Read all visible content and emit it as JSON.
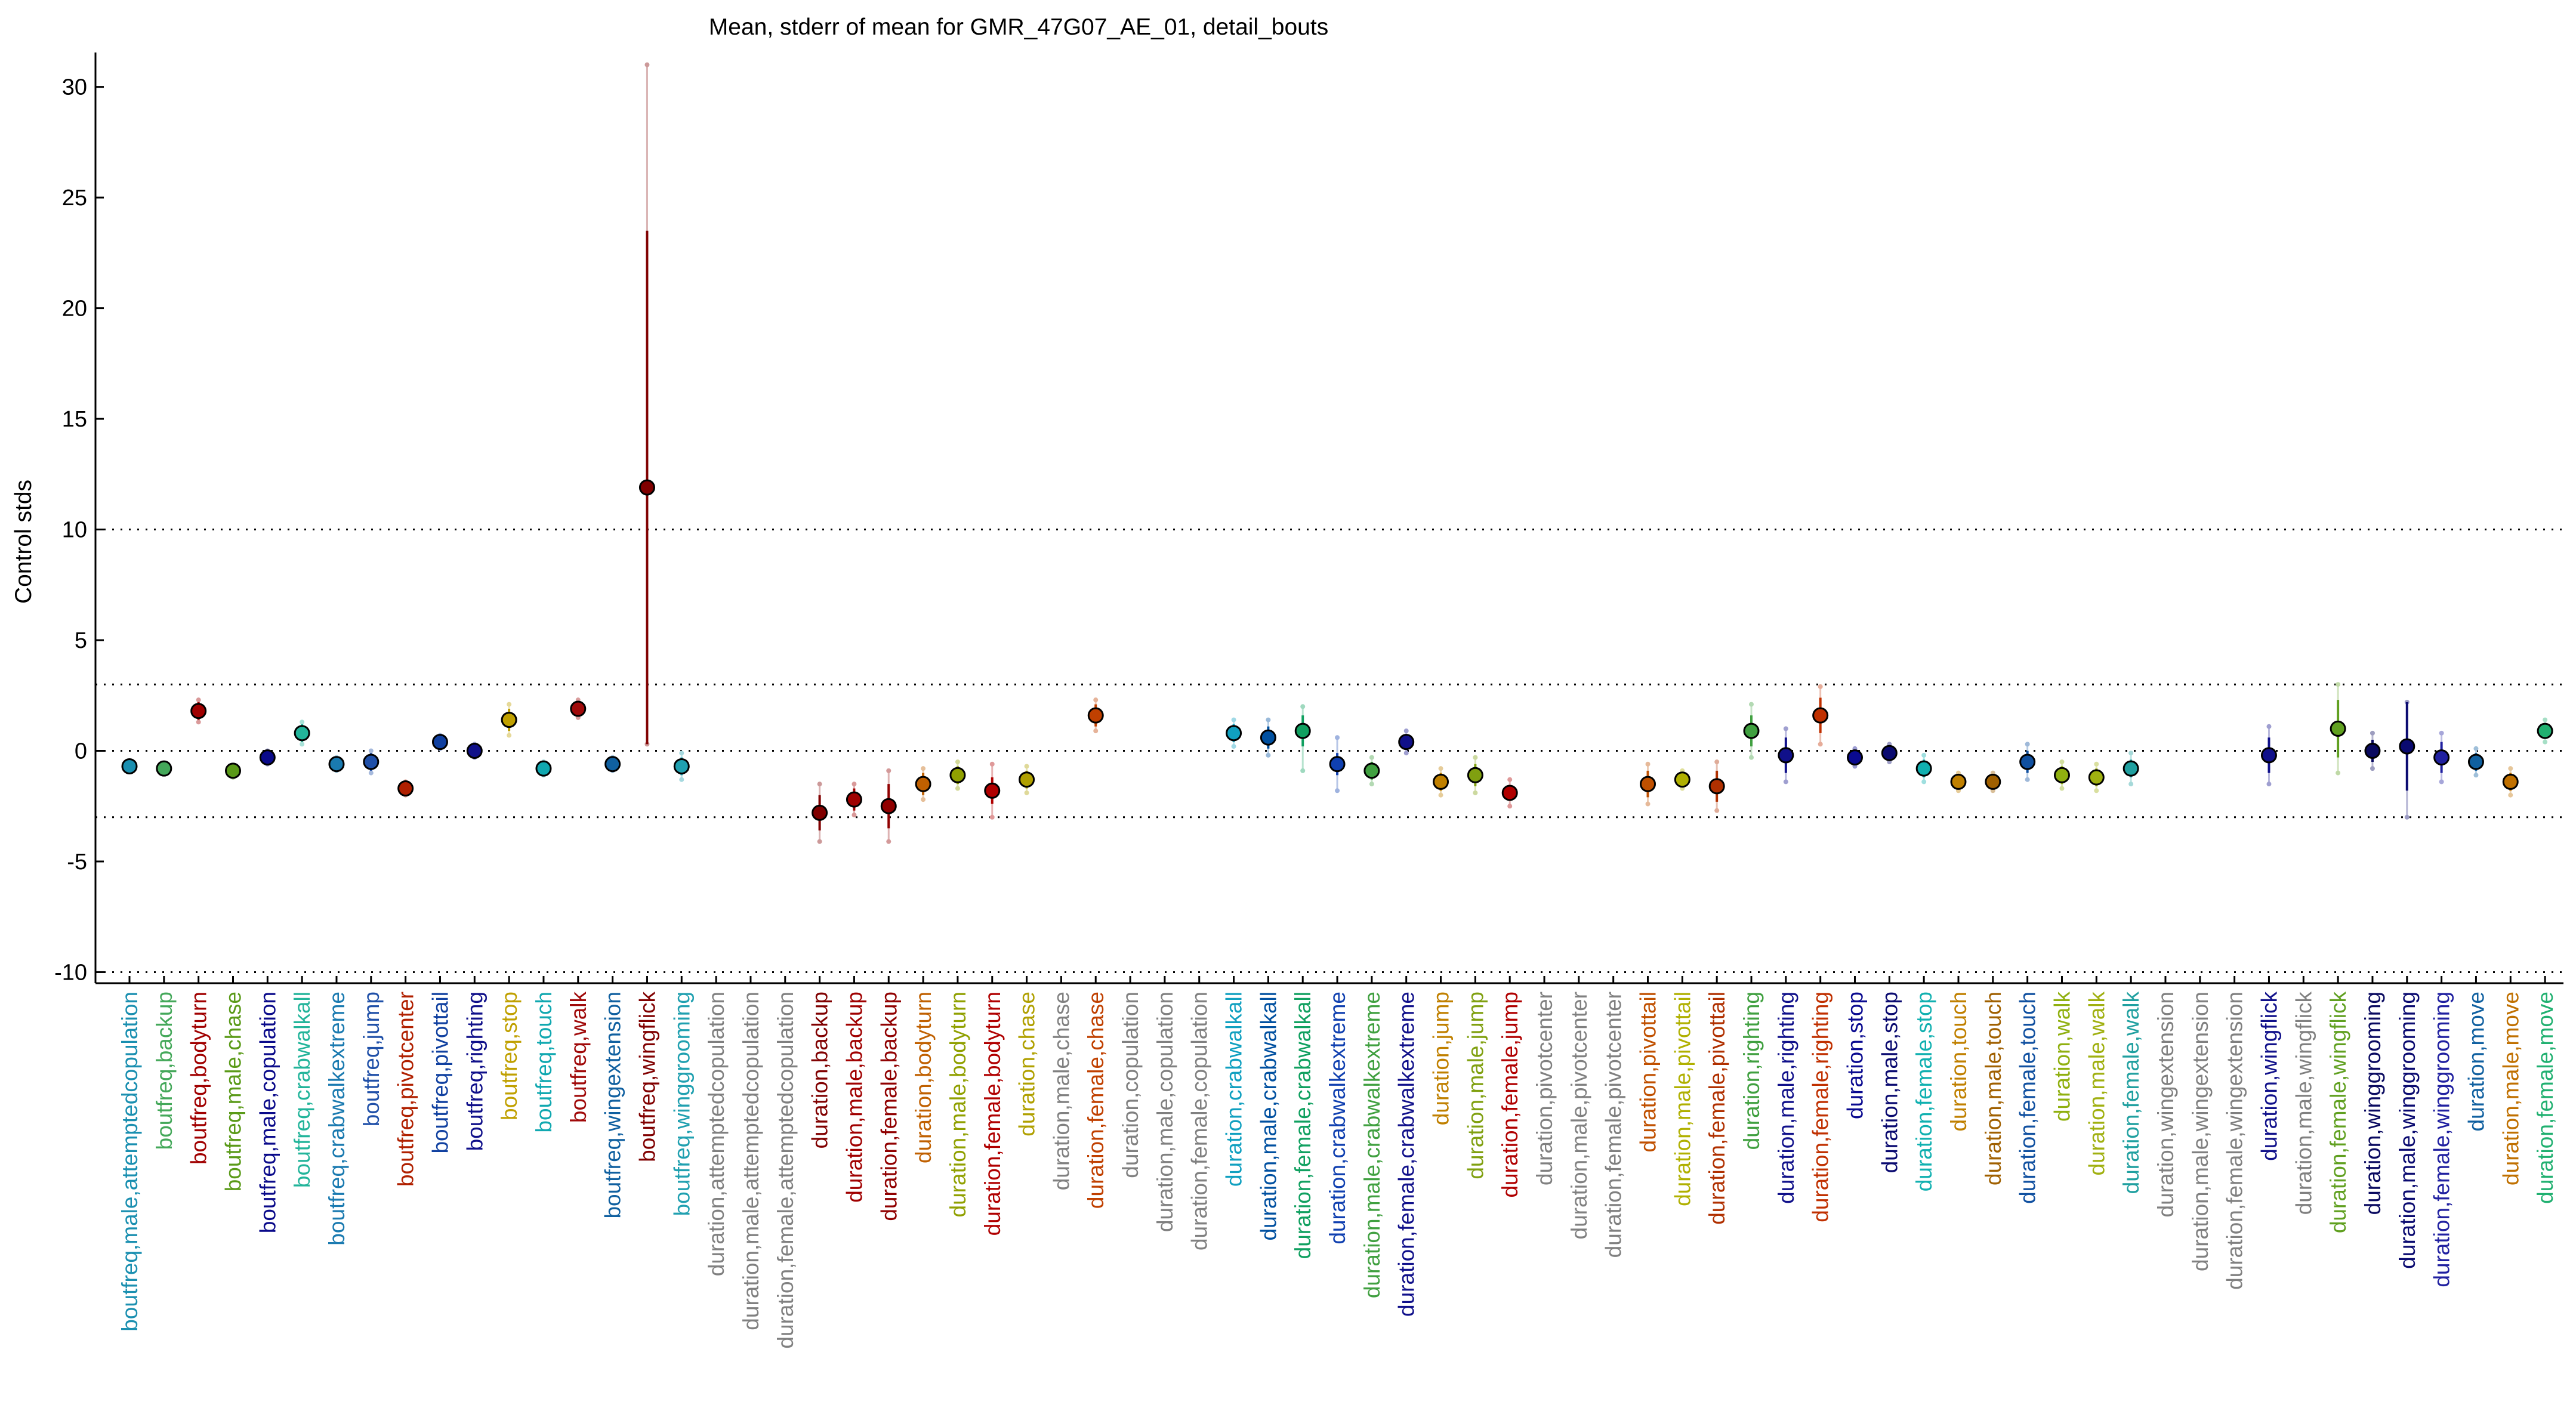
{
  "chart_data": {
    "type": "scatter",
    "title": "Mean, stderr of mean for GMR_47G07_AE_01, detail_bouts",
    "xlabel": "",
    "ylabel": "Control stds",
    "ylim": [
      -10.5,
      31.5
    ],
    "yticks": [
      -10,
      -5,
      0,
      5,
      10,
      15,
      20,
      25,
      30
    ],
    "reference_lines": [
      -10,
      -3,
      0,
      3,
      10
    ],
    "grid": false,
    "categories": [
      "boutfreq,male,attemptedcopulation",
      "boutfreq,backup",
      "boutfreq,bodyturn",
      "boutfreq,male,chase",
      "boutfreq,male,copulation",
      "boutfreq,crabwalkall",
      "boutfreq,crabwalkextreme",
      "boutfreq,jump",
      "boutfreq,pivotcenter",
      "boutfreq,pivottail",
      "boutfreq,righting",
      "boutfreq,stop",
      "boutfreq,touch",
      "boutfreq,walk",
      "boutfreq,wingextension",
      "boutfreq,wingflick",
      "boutfreq,winggrooming",
      "duration,attemptedcopulation",
      "duration,male,attemptedcopulation",
      "duration,female,attemptedcopulation",
      "duration,backup",
      "duration,male,backup",
      "duration,female,backup",
      "duration,bodyturn",
      "duration,male,bodyturn",
      "duration,female,bodyturn",
      "duration,chase",
      "duration,male,chase",
      "duration,female,chase",
      "duration,copulation",
      "duration,male,copulation",
      "duration,female,copulation",
      "duration,crabwalkall",
      "duration,male,crabwalkall",
      "duration,female,crabwalkall",
      "duration,crabwalkextreme",
      "duration,male,crabwalkextreme",
      "duration,female,crabwalkextreme",
      "duration,jump",
      "duration,male,jump",
      "duration,female,jump",
      "duration,pivotcenter",
      "duration,male,pivotcenter",
      "duration,female,pivotcenter",
      "duration,pivottail",
      "duration,male,pivottail",
      "duration,female,pivottail",
      "duration,righting",
      "duration,male,righting",
      "duration,female,righting",
      "duration,stop",
      "duration,male,stop",
      "duration,female,stop",
      "duration,touch",
      "duration,male,touch",
      "duration,female,touch",
      "duration,walk",
      "duration,male,walk",
      "duration,female,walk",
      "duration,wingextension",
      "duration,male,wingextension",
      "duration,female,wingextension",
      "duration,wingflick",
      "duration,male,wingflick",
      "duration,female,wingflick",
      "duration,winggrooming",
      "duration,male,winggrooming",
      "duration,female,winggrooming",
      "duration,move",
      "duration,male,move",
      "duration,female,move"
    ],
    "label_colors": [
      "#1a8fb0",
      "#44a85a",
      "#a00000",
      "#5a9a18",
      "#0a0a8a",
      "#22b49a",
      "#1a7ab0",
      "#2050a8",
      "#b02000",
      "#1040a0",
      "#10108a",
      "#c0a000",
      "#10a8b0",
      "#a00a0a",
      "#1060a0",
      "#800000",
      "#20a0b0",
      "#808080",
      "#808080",
      "#808080",
      "#800000",
      "#a00000",
      "#900000",
      "#c06000",
      "#90a000",
      "#b00000",
      "#b0a000",
      "#808080",
      "#c04000",
      "#808080",
      "#808080",
      "#808080",
      "#10a0c0",
      "#0050a0",
      "#10a060",
      "#1040b0",
      "#40a040",
      "#10108a",
      "#c08000",
      "#80a010",
      "#b00000",
      "#808080",
      "#808080",
      "#808080",
      "#c05000",
      "#b0b000",
      "#b03000",
      "#40a040",
      "#10108a",
      "#c03000",
      "#0a0a90",
      "#0a0a70",
      "#10b0b0",
      "#c08000",
      "#a06000",
      "#1050a0",
      "#90b010",
      "#a0b010",
      "#20a0a0",
      "#808080",
      "#808080",
      "#808080",
      "#10108a",
      "#808080",
      "#60a020",
      "#0a0a60",
      "#0a0a70",
      "#2020a0",
      "#1060a0",
      "#c07000",
      "#20b070"
    ],
    "marker_colors": [
      "#1a8fb0",
      "#44a85a",
      "#a00000",
      "#5a9a18",
      "#0a0a8a",
      "#22b49a",
      "#1a7ab0",
      "#2050a8",
      "#b02000",
      "#1040a0",
      "#10108a",
      "#c0a000",
      "#10a8b0",
      "#a00a0a",
      "#1060a0",
      "#800000",
      "#20a0b0",
      null,
      null,
      null,
      "#800000",
      "#a00000",
      "#900000",
      "#c06000",
      "#90a000",
      "#b00000",
      "#b0a000",
      null,
      "#c04000",
      null,
      null,
      null,
      "#10a0c0",
      "#0050a0",
      "#10a060",
      "#1040b0",
      "#40a040",
      "#10108a",
      "#c08000",
      "#80a010",
      "#b00000",
      null,
      null,
      null,
      "#c05000",
      "#b0b000",
      "#b03000",
      "#40a040",
      "#10108a",
      "#c03000",
      "#0a0a90",
      "#0a0a70",
      "#10b0b0",
      "#c08000",
      "#a06000",
      "#1050a0",
      "#90b010",
      "#a0b010",
      "#20a0a0",
      null,
      null,
      null,
      "#10108a",
      null,
      "#60a020",
      "#0a0a60",
      "#0a0a70",
      "#2020a0",
      "#1060a0",
      "#c07000",
      "#20b070"
    ],
    "means": [
      -0.7,
      -0.8,
      1.8,
      -0.9,
      -0.3,
      0.8,
      -0.6,
      -0.5,
      -1.7,
      0.4,
      0.0,
      1.4,
      -0.8,
      1.9,
      -0.6,
      11.9,
      -0.7,
      null,
      null,
      null,
      -2.8,
      -2.2,
      -2.5,
      -1.5,
      -1.1,
      -1.8,
      -1.3,
      null,
      1.6,
      null,
      null,
      null,
      0.8,
      0.6,
      0.9,
      -0.6,
      -0.9,
      0.4,
      -1.4,
      -1.1,
      -1.9,
      null,
      null,
      null,
      -1.5,
      -1.3,
      -1.6,
      0.9,
      -0.2,
      1.6,
      -0.3,
      -0.1,
      -0.8,
      -1.4,
      -1.4,
      -0.5,
      -1.1,
      -1.2,
      -0.8,
      null,
      null,
      null,
      -0.2,
      null,
      1.0,
      0.0,
      0.2,
      -0.3,
      -0.5,
      -1.4,
      0.9
    ],
    "stderr": [
      0.2,
      0.2,
      0.4,
      0.2,
      0.2,
      0.4,
      0.2,
      0.4,
      0.2,
      0.2,
      0.2,
      0.5,
      0.2,
      0.3,
      0.2,
      11.6,
      0.4,
      null,
      null,
      null,
      0.8,
      0.5,
      1.0,
      0.5,
      0.4,
      0.6,
      0.4,
      null,
      0.5,
      null,
      null,
      null,
      0.4,
      0.5,
      0.7,
      0.5,
      0.4,
      0.3,
      0.4,
      0.5,
      0.3,
      null,
      null,
      null,
      0.6,
      0.3,
      0.7,
      0.7,
      0.8,
      0.8,
      0.3,
      0.3,
      0.4,
      0.3,
      0.3,
      0.5,
      0.4,
      0.4,
      0.4,
      null,
      null,
      null,
      0.8,
      null,
      1.3,
      0.5,
      2.0,
      0.7,
      0.4,
      0.4,
      0.3
    ],
    "whisker_range": [
      [
        -0.9,
        -0.5
      ],
      [
        -1.0,
        -0.6
      ],
      [
        1.3,
        2.3
      ],
      [
        -1.2,
        -0.7
      ],
      [
        -0.6,
        0.0
      ],
      [
        0.3,
        1.3
      ],
      [
        -0.9,
        -0.3
      ],
      [
        -1.0,
        0.0
      ],
      [
        -2.0,
        -1.4
      ],
      [
        0.1,
        0.7
      ],
      [
        -0.3,
        0.3
      ],
      [
        0.7,
        2.1
      ],
      [
        -1.1,
        -0.5
      ],
      [
        1.5,
        2.3
      ],
      [
        -0.9,
        -0.3
      ],
      [
        0.3,
        31.0
      ],
      [
        -1.3,
        -0.1
      ],
      null,
      null,
      null,
      [
        -4.1,
        -1.5
      ],
      [
        -2.9,
        -1.5
      ],
      [
        -4.1,
        -0.9
      ],
      [
        -2.2,
        -0.8
      ],
      [
        -1.7,
        -0.5
      ],
      [
        -3.0,
        -0.6
      ],
      [
        -1.9,
        -0.7
      ],
      null,
      [
        0.9,
        2.3
      ],
      null,
      null,
      null,
      [
        0.2,
        1.4
      ],
      [
        -0.2,
        1.4
      ],
      [
        -0.9,
        2.0
      ],
      [
        -1.8,
        0.6
      ],
      [
        -1.5,
        -0.3
      ],
      [
        -0.1,
        0.9
      ],
      [
        -2.0,
        -0.8
      ],
      [
        -1.9,
        -0.3
      ],
      [
        -2.5,
        -1.3
      ],
      null,
      null,
      null,
      [
        -2.4,
        -0.6
      ],
      [
        -1.7,
        -0.9
      ],
      [
        -2.7,
        -0.5
      ],
      [
        -0.3,
        2.1
      ],
      [
        -1.4,
        1.0
      ],
      [
        0.3,
        2.9
      ],
      [
        -0.7,
        0.1
      ],
      [
        -0.5,
        0.3
      ],
      [
        -1.4,
        -0.2
      ],
      [
        -1.8,
        -1.0
      ],
      [
        -1.8,
        -1.0
      ],
      [
        -1.3,
        0.3
      ],
      [
        -1.7,
        -0.5
      ],
      [
        -1.8,
        -0.6
      ],
      [
        -1.5,
        -0.1
      ],
      null,
      null,
      null,
      [
        -1.5,
        1.1
      ],
      null,
      [
        -1.0,
        3.0
      ],
      [
        -0.8,
        0.8
      ],
      [
        -3.0,
        2.2
      ],
      [
        -1.4,
        0.8
      ],
      [
        -1.1,
        0.1
      ],
      [
        -2.0,
        -0.8
      ],
      [
        0.4,
        1.4
      ]
    ]
  }
}
